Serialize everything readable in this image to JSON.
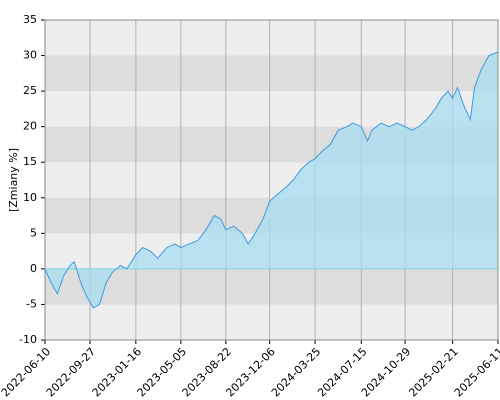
{
  "chart_data": {
    "type": "area",
    "y_label": "[Zmiany %]",
    "x": [
      "2022-06-10",
      "2022-06-25",
      "2022-07-10",
      "2022-07-25",
      "2022-08-10",
      "2022-08-20",
      "2022-09-05",
      "2022-09-20",
      "2022-10-05",
      "2022-10-20",
      "2022-11-05",
      "2022-11-20",
      "2022-12-10",
      "2022-12-25",
      "2023-01-16",
      "2023-02-01",
      "2023-02-20",
      "2023-03-10",
      "2023-04-01",
      "2023-04-20",
      "2023-05-05",
      "2023-05-25",
      "2023-06-15",
      "2023-07-05",
      "2023-07-25",
      "2023-08-10",
      "2023-08-22",
      "2023-09-10",
      "2023-10-01",
      "2023-10-15",
      "2023-11-01",
      "2023-11-20",
      "2023-12-06",
      "2023-12-25",
      "2024-01-15",
      "2024-02-01",
      "2024-02-20",
      "2024-03-10",
      "2024-03-25",
      "2024-04-10",
      "2024-05-01",
      "2024-05-20",
      "2024-06-10",
      "2024-06-25",
      "2024-07-15",
      "2024-07-30",
      "2024-08-10",
      "2024-09-01",
      "2024-09-20",
      "2024-10-10",
      "2024-10-29",
      "2024-11-15",
      "2024-12-01",
      "2024-12-20",
      "2025-01-10",
      "2025-01-25",
      "2025-02-10",
      "2025-02-21",
      "2025-03-05",
      "2025-03-20",
      "2025-04-05",
      "2025-04-15",
      "2025-05-01",
      "2025-05-20",
      "2025-06-11"
    ],
    "values": [
      0,
      -2,
      -3.5,
      -1,
      0.5,
      1,
      -2,
      -4,
      -5.5,
      -5,
      -2,
      -0.5,
      0.5,
      0,
      2,
      3,
      2.5,
      1.5,
      3,
      3.5,
      3,
      3.5,
      4,
      5.5,
      7.5,
      7,
      5.5,
      6,
      5,
      3.5,
      5,
      7,
      9.5,
      10.5,
      11.5,
      12.5,
      14,
      15,
      15.5,
      16.5,
      17.5,
      19.5,
      20,
      20.5,
      20,
      18,
      19.5,
      20.5,
      20,
      20.5,
      20,
      19.5,
      20,
      21,
      22.5,
      24,
      25,
      24,
      25.5,
      23,
      21,
      25.5,
      28,
      30,
      30.5
    ],
    "color": "#3d9be0",
    "fill": "#a8dcef",
    "xlim": [
      "2022-06-10",
      "2025-06-11"
    ],
    "xticks": [
      "2022-06-10",
      "2022-09-27",
      "2023-01-16",
      "2023-05-05",
      "2023-08-22",
      "2023-12-06",
      "2024-03-25",
      "2024-07-15",
      "2024-10-29",
      "2025-02-21",
      "2025-06-11"
    ],
    "ylim": [
      -10,
      35
    ],
    "yticks": [
      -10,
      -5,
      0,
      5,
      10,
      15,
      20,
      25,
      30,
      35
    ],
    "grid": true
  }
}
